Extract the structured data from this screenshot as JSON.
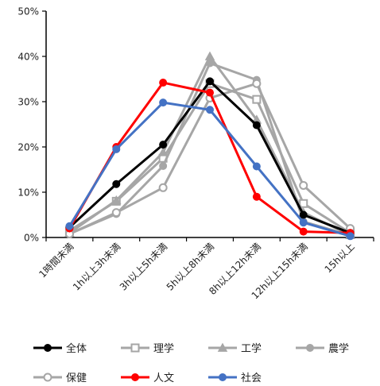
{
  "chart_data": {
    "type": "line",
    "categories": [
      "1時間未満",
      "1h以上3h未満",
      "3h以上5h未満",
      "5h以上8h未満",
      "8h以上12h未満",
      "12h以上15h未満",
      "15h以上"
    ],
    "y_ticks": [
      "0%",
      "10%",
      "20%",
      "30%",
      "40%",
      "50%"
    ],
    "ylim": [
      0,
      50
    ],
    "grid": false,
    "legend_position": "bottom",
    "series": [
      {
        "name": "全体",
        "color": "#000000",
        "marker": "circle-filled",
        "values": [
          2.2,
          11.8,
          20.5,
          34.5,
          24.8,
          5.0,
          1.0
        ]
      },
      {
        "name": "理学",
        "color": "#a6a6a6",
        "marker": "square-open",
        "values": [
          1.5,
          8.0,
          17.5,
          34.0,
          30.5,
          7.5,
          1.0
        ]
      },
      {
        "name": "工学",
        "color": "#a6a6a6",
        "marker": "triangle-filled",
        "values": [
          1.0,
          8.2,
          18.8,
          40.0,
          26.0,
          5.5,
          0.5
        ]
      },
      {
        "name": "農学",
        "color": "#a6a6a6",
        "marker": "circle-filled",
        "values": [
          0.8,
          5.2,
          15.8,
          38.5,
          34.8,
          3.5,
          0.5
        ]
      },
      {
        "name": "保健",
        "color": "#a6a6a6",
        "marker": "circle-open",
        "values": [
          0.8,
          5.5,
          11.0,
          30.8,
          34.0,
          11.5,
          2.0
        ]
      },
      {
        "name": "人文",
        "color": "#ff0000",
        "marker": "circle-filled",
        "values": [
          2.0,
          20.0,
          34.2,
          32.0,
          9.0,
          1.3,
          1.0
        ]
      },
      {
        "name": "社会",
        "color": "#4472c4",
        "marker": "circle-filled",
        "values": [
          2.5,
          19.5,
          29.8,
          28.2,
          15.7,
          3.3,
          0.3
        ]
      }
    ]
  }
}
